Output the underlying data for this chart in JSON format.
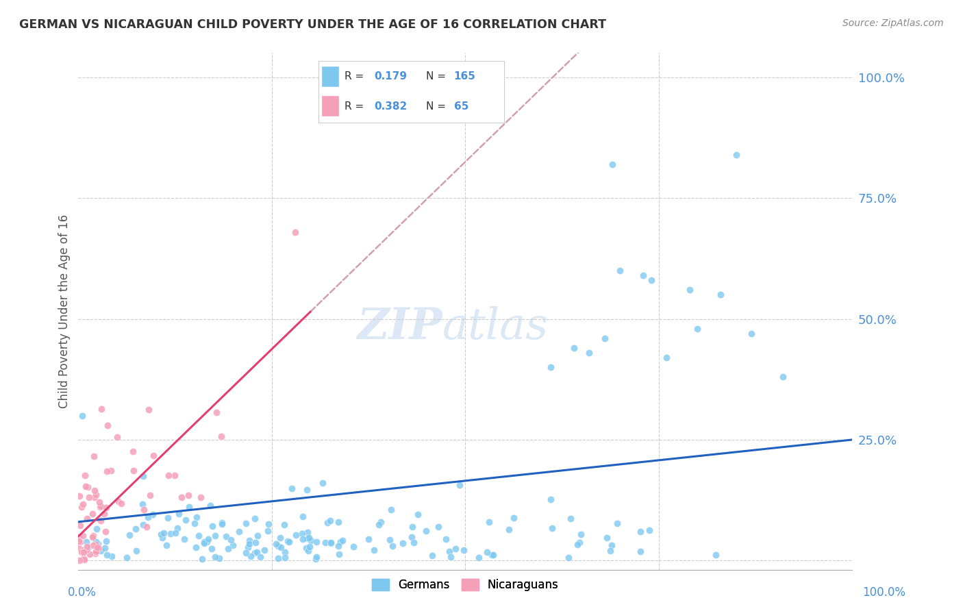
{
  "title": "GERMAN VS NICARAGUAN CHILD POVERTY UNDER THE AGE OF 16 CORRELATION CHART",
  "source": "Source: ZipAtlas.com",
  "ylabel": "Child Poverty Under the Age of 16",
  "blue_color": "#7ec8f0",
  "pink_color": "#f5a0b8",
  "blue_line_color": "#2060c0",
  "pink_line_color": "#e04070",
  "dashed_line_color": "#d0a0b0",
  "watermark_color": "#dce8f5",
  "background_color": "#ffffff",
  "grid_color": "#cccccc",
  "title_color": "#333333",
  "axis_label_color": "#4a90d9",
  "legend_R1": "0.179",
  "legend_N1": "165",
  "legend_R2": "0.382",
  "legend_N2": "65"
}
